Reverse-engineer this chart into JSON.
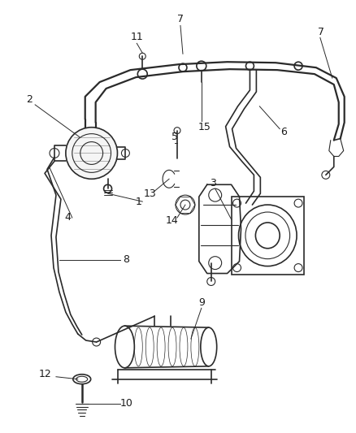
{
  "background_color": "#ffffff",
  "line_color": "#2a2a2a",
  "text_color": "#1a1a1a",
  "figsize": [
    4.38,
    5.33
  ],
  "dpi": 100,
  "label_fontsize": 9.0
}
